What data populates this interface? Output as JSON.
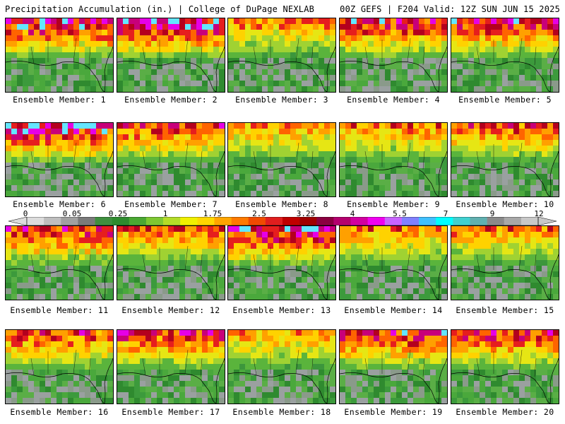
{
  "header": {
    "left": "Precipitation Accumulation (in.) | College of DuPage NEXLAB",
    "right": "00Z GEFS | F204 Valid: 12Z SUN JUN 15 2025"
  },
  "colorbar": {
    "ticks": [
      "0",
      "0.05",
      "0.25",
      "1",
      "1.75",
      "2.5",
      "3.25",
      "4",
      "5.5",
      "7",
      "9",
      "12"
    ],
    "colors": [
      "#dcdcdc",
      "#bebebe",
      "#a0a0a0",
      "#7a7a7a",
      "#3f8f3f",
      "#2e8b2e",
      "#4aa832",
      "#7ec832",
      "#b4dc28",
      "#f0f000",
      "#ffd700",
      "#ffa500",
      "#ff7a00",
      "#f04a00",
      "#e01e1e",
      "#c00000",
      "#a00000",
      "#8b0040",
      "#b4006e",
      "#d200a0",
      "#f000f0",
      "#c864ff",
      "#8080ff",
      "#40c0ff",
      "#00ffff",
      "#40d0d0",
      "#60b0b0",
      "#8a8a8a",
      "#a8a8a8",
      "#c8c8c8"
    ]
  },
  "members": [
    {
      "label": "Ensemble Member: 1",
      "intensity": 0.95
    },
    {
      "label": "Ensemble Member: 2",
      "intensity": 1.0
    },
    {
      "label": "Ensemble Member: 3",
      "intensity": 0.6
    },
    {
      "label": "Ensemble Member: 4",
      "intensity": 0.85
    },
    {
      "label": "Ensemble Member: 5",
      "intensity": 0.85
    },
    {
      "label": "Ensemble Member: 6",
      "intensity": 1.0
    },
    {
      "label": "Ensemble Member: 7",
      "intensity": 0.75
    },
    {
      "label": "Ensemble Member: 8",
      "intensity": 0.55
    },
    {
      "label": "Ensemble Member: 9",
      "intensity": 0.6
    },
    {
      "label": "Ensemble Member: 10",
      "intensity": 0.7
    },
    {
      "label": "Ensemble Member: 11",
      "intensity": 0.8
    },
    {
      "label": "Ensemble Member: 12",
      "intensity": 0.65
    },
    {
      "label": "Ensemble Member: 13",
      "intensity": 0.95
    },
    {
      "label": "Ensemble Member: 14",
      "intensity": 0.6
    },
    {
      "label": "Ensemble Member: 15",
      "intensity": 0.6
    },
    {
      "label": "Ensemble Member: 16",
      "intensity": 0.75
    },
    {
      "label": "Ensemble Member: 17",
      "intensity": 0.8
    },
    {
      "label": "Ensemble Member: 18",
      "intensity": 0.55
    },
    {
      "label": "Ensemble Member: 19",
      "intensity": 0.85
    },
    {
      "label": "Ensemble Member: 20",
      "intensity": 0.8
    }
  ]
}
